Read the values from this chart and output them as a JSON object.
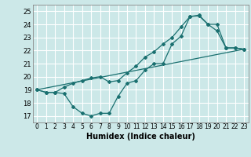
{
  "xlabel": "Humidex (Indice chaleur)",
  "ylabel": "",
  "bg_color": "#cce8e8",
  "grid_color": "#ffffff",
  "line_color": "#1a7070",
  "xlim": [
    -0.5,
    23.5
  ],
  "ylim": [
    16.5,
    25.5
  ],
  "xticks": [
    0,
    1,
    2,
    3,
    4,
    5,
    6,
    7,
    8,
    9,
    10,
    11,
    12,
    13,
    14,
    15,
    16,
    17,
    18,
    19,
    20,
    21,
    22,
    23
  ],
  "yticks": [
    17,
    18,
    19,
    20,
    21,
    22,
    23,
    24,
    25
  ],
  "line1_x": [
    0,
    1,
    2,
    3,
    4,
    5,
    6,
    7,
    8,
    9,
    10,
    11,
    12,
    13,
    14,
    15,
    16,
    17,
    18,
    19,
    20,
    21,
    22,
    23
  ],
  "line1_y": [
    19.0,
    18.8,
    18.8,
    18.7,
    17.7,
    17.2,
    17.0,
    17.2,
    17.2,
    18.5,
    19.5,
    19.7,
    20.5,
    21.0,
    21.0,
    22.5,
    23.1,
    24.6,
    24.7,
    24.0,
    23.5,
    22.2,
    22.2,
    22.1
  ],
  "line2_x": [
    0,
    1,
    2,
    3,
    4,
    5,
    6,
    7,
    8,
    9,
    10,
    11,
    12,
    13,
    14,
    15,
    16,
    17,
    18,
    19,
    20,
    21,
    22,
    23
  ],
  "line2_y": [
    19.0,
    18.8,
    18.8,
    19.2,
    19.5,
    19.7,
    19.9,
    20.0,
    19.6,
    19.7,
    20.3,
    20.8,
    21.5,
    21.9,
    22.5,
    23.0,
    23.8,
    24.6,
    24.65,
    24.0,
    24.0,
    22.2,
    22.2,
    22.1
  ],
  "line3_x": [
    0,
    23
  ],
  "line3_y": [
    19.0,
    22.1
  ]
}
